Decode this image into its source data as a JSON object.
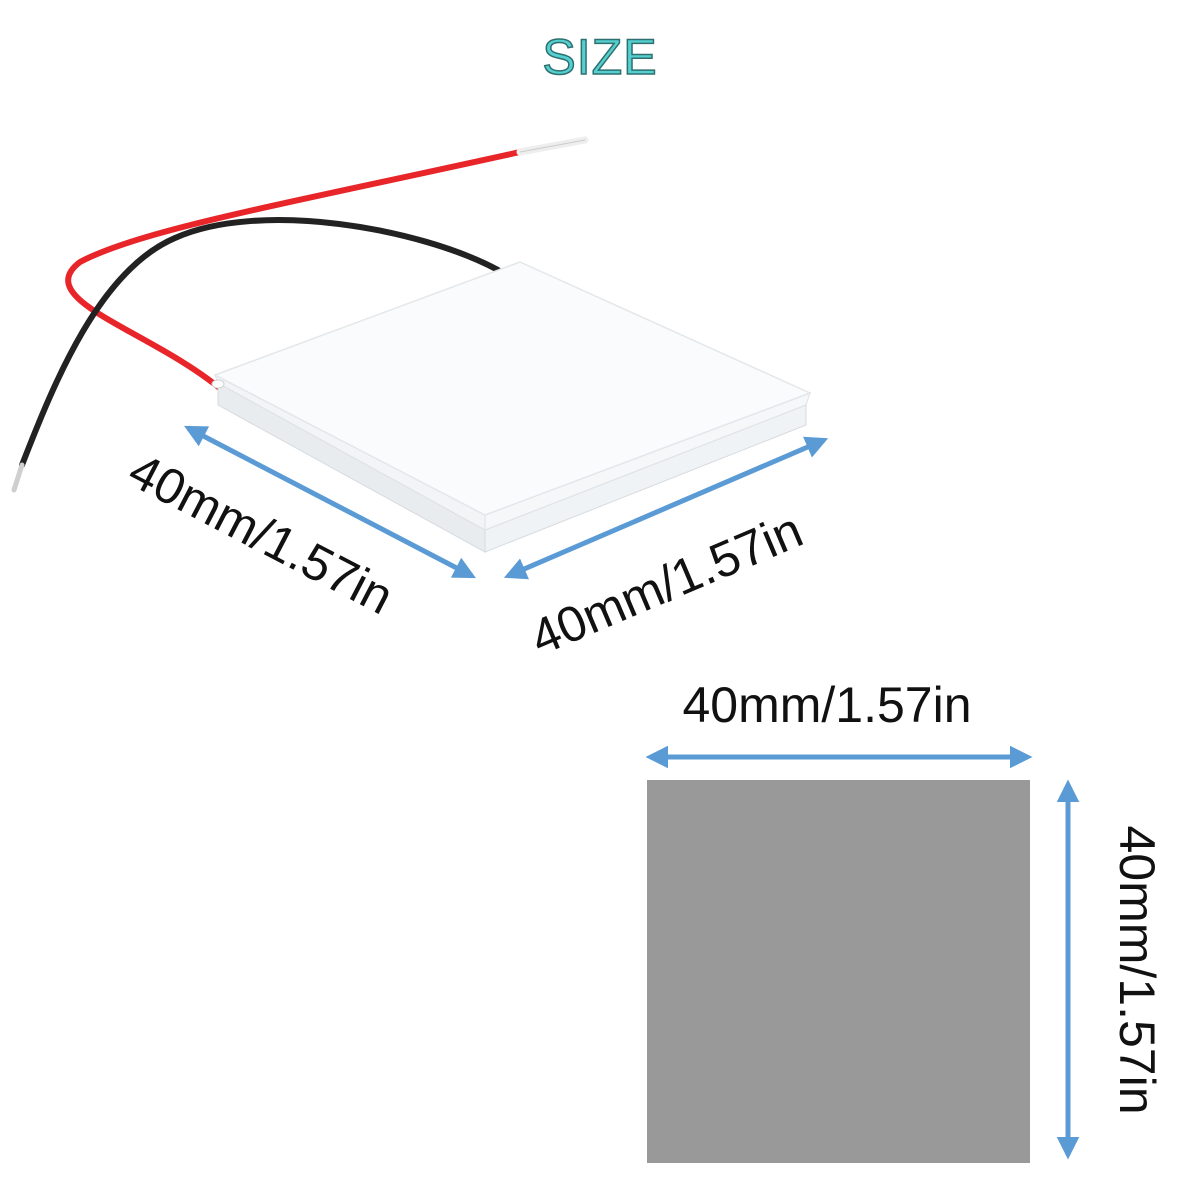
{
  "title": "SIZE",
  "dimensions": {
    "iso_left": "40mm/1.57in",
    "iso_right": "40mm/1.57in",
    "flat_top": "40mm/1.57in",
    "flat_right": "40mm/1.57in"
  },
  "colors": {
    "title": "#55d0d0",
    "arrow": "#5b9bd5",
    "plate_top": "#fafbfc",
    "plate_side": "#eef1f4",
    "flat_plate": "#999999",
    "wire_red": "#e8262a",
    "wire_black": "#222222"
  }
}
